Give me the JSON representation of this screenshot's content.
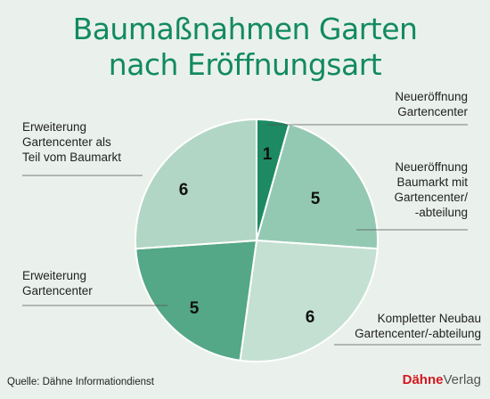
{
  "title_line1": "Baumaßnahmen Garten",
  "title_line2": "nach Eröffnungsart",
  "source": "Quelle: Dähne Informationdienst",
  "brand": {
    "part1": "Dähne",
    "part2": "Verlag"
  },
  "chart_data": {
    "type": "pie",
    "title": "Baumaßnahmen Garten nach Eröffnungsart",
    "slices": [
      {
        "label": "Neueröffnung Gartencenter",
        "value": 1,
        "color": "#1d8a63"
      },
      {
        "label": "Neueröffnung Baumarkt mit Gartencenter/ -abteilung",
        "value": 5,
        "color": "#93c9b3"
      },
      {
        "label": "Kompletter Neubau Gartencenter/-abteilung",
        "value": 6,
        "color": "#c3e0d3"
      },
      {
        "label": "Erweiterung Gartencenter",
        "value": 5,
        "color": "#54a787"
      },
      {
        "label": "Erweiterung Gartencenter als Teil vom Baumarkt",
        "value": 6,
        "color": "#b1d6c5"
      }
    ],
    "label_lines": [
      [
        "Neueröffnung",
        "Gartencenter"
      ],
      [
        "Neueröffnung",
        "Baumarkt mit",
        "Gartencenter/",
        "-abteilung"
      ],
      [
        "Kompletter Neubau",
        "Gartencenter/-abteilung"
      ],
      [
        "Erweiterung",
        "Gartencenter"
      ],
      [
        "Erweiterung",
        "Gartencenter als",
        "Teil vom Baumarkt"
      ]
    ]
  }
}
